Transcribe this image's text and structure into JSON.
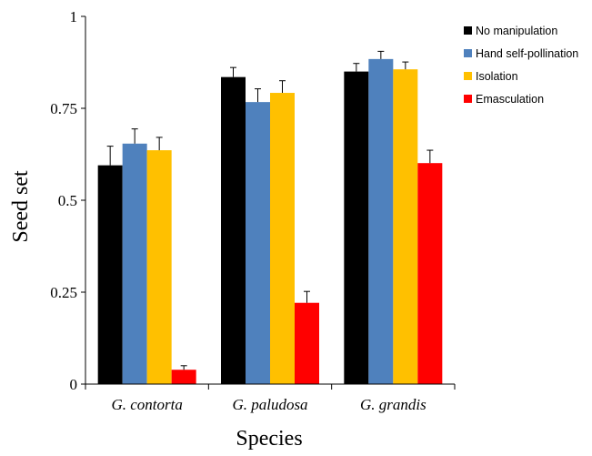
{
  "chart_data": {
    "type": "bar",
    "title": "",
    "xlabel": "Species",
    "ylabel": "Seed set",
    "ylim": [
      0,
      1
    ],
    "yticks": [
      0,
      0.25,
      0.5,
      0.75,
      1
    ],
    "ytick_labels": [
      "0",
      "0.25",
      "0.5",
      "0.75",
      "1"
    ],
    "grid": false,
    "legend_position": "top-right",
    "categories": [
      "G. contorta",
      "G. paludosa",
      "G. grandis"
    ],
    "series": [
      {
        "name": "No manipulation",
        "color": "#000000",
        "values": [
          0.595,
          0.835,
          0.85
        ],
        "errors": [
          0.052,
          0.026,
          0.022
        ]
      },
      {
        "name": "Hand self-pollination",
        "color": "#4f81bd",
        "values": [
          0.654,
          0.767,
          0.884
        ],
        "errors": [
          0.04,
          0.036,
          0.021
        ]
      },
      {
        "name": "Isolation",
        "color": "#ffc000",
        "values": [
          0.636,
          0.792,
          0.856
        ],
        "errors": [
          0.035,
          0.033,
          0.02
        ]
      },
      {
        "name": "Emasculation",
        "color": "#ff0000",
        "values": [
          0.039,
          0.221,
          0.601
        ],
        "errors": [
          0.011,
          0.031,
          0.035
        ]
      }
    ]
  }
}
